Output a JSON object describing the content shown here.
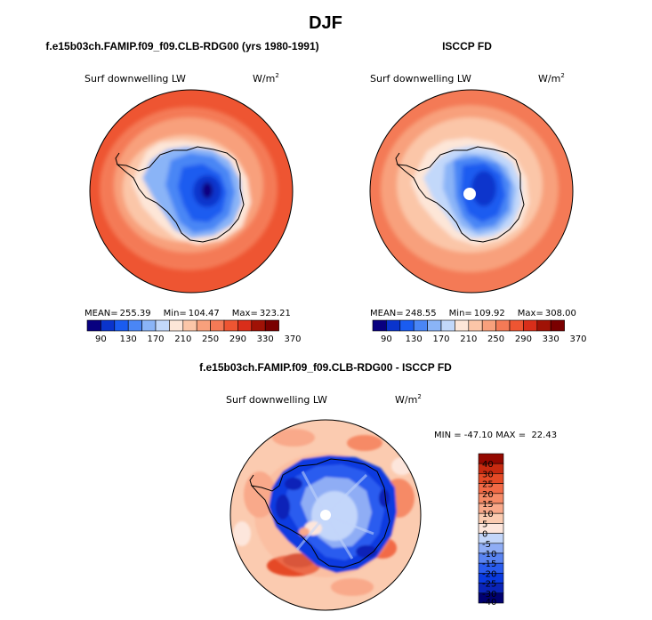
{
  "figure": {
    "title": "DJF"
  },
  "colors": {
    "abs_scale": [
      "#080080",
      "#0a34cc",
      "#1a5cf0",
      "#4a86f5",
      "#8ab4f7",
      "#c2d8fa",
      "#fde6d8",
      "#fbc6a8",
      "#f8a07c",
      "#f47a56",
      "#ee5532",
      "#d92e1a",
      "#a01206",
      "#7a0000"
    ],
    "diff_scale": [
      "#000070",
      "#0a24b8",
      "#0a3ae0",
      "#2a5cef",
      "#5a84f2",
      "#8fadf5",
      "#c3d6fa",
      "#fde6dc",
      "#fbcbb0",
      "#f9a98a",
      "#f68a66",
      "#f26a46",
      "#e54a26",
      "#c82a10",
      "#940800"
    ],
    "land_outline": "#000000"
  },
  "chart_data": [
    {
      "type": "heatmap",
      "panel": "top-left",
      "title": "f.e15b03ch.FAMIP.f09_f09.CLB-RDG00 (yrs 1980-1991)",
      "left_label": "Surf downwelling LW",
      "units": "W/m2",
      "stats": {
        "mean_label": "MEAN=",
        "mean": "255.39",
        "min_label": "Min=",
        "min": "104.47",
        "max_label": "Max=",
        "max": "323.21"
      },
      "colorbar_levels": [
        "90",
        "130",
        "170",
        "210",
        "250",
        "290",
        "330",
        "370"
      ],
      "field": {
        "center_value": 105,
        "ice_value": 145,
        "coast_value": 220,
        "ocean_inner": 270,
        "ocean_outer": 315,
        "missing_pole": false
      }
    },
    {
      "type": "heatmap",
      "panel": "top-right",
      "title": "ISCCP FD",
      "left_label": "Surf downwelling LW",
      "units": "W/m2",
      "stats": {
        "mean_label": "MEAN=",
        "mean": "248.55",
        "min_label": "Min=",
        "min": "109.92",
        "max_label": "Max=",
        "max": "308.00"
      },
      "colorbar_levels": [
        "90",
        "130",
        "170",
        "210",
        "250",
        "290",
        "330",
        "370"
      ],
      "field": {
        "center_value": 115,
        "ice_value": 150,
        "coast_value": 225,
        "ocean_inner": 260,
        "ocean_outer": 305,
        "missing_pole": true
      }
    },
    {
      "type": "heatmap",
      "panel": "bottom",
      "title": "f.e15b03ch.FAMIP.f09_f09.CLB-RDG00 - ISCCP FD",
      "left_label": "Surf downwelling LW",
      "units": "W/m2",
      "range_label": "MIN = -47.10 MAX =  22.43",
      "min": -47.1,
      "max": 22.43,
      "colorbar_levels": [
        "40",
        "30",
        "25",
        "20",
        "15",
        "10",
        "5",
        "0",
        "-5",
        "-10",
        "-15",
        "-20",
        "-25",
        "-30",
        "-40"
      ],
      "field": {
        "ice_value": -20,
        "ocean_value": 8,
        "missing_pole": true
      }
    }
  ]
}
